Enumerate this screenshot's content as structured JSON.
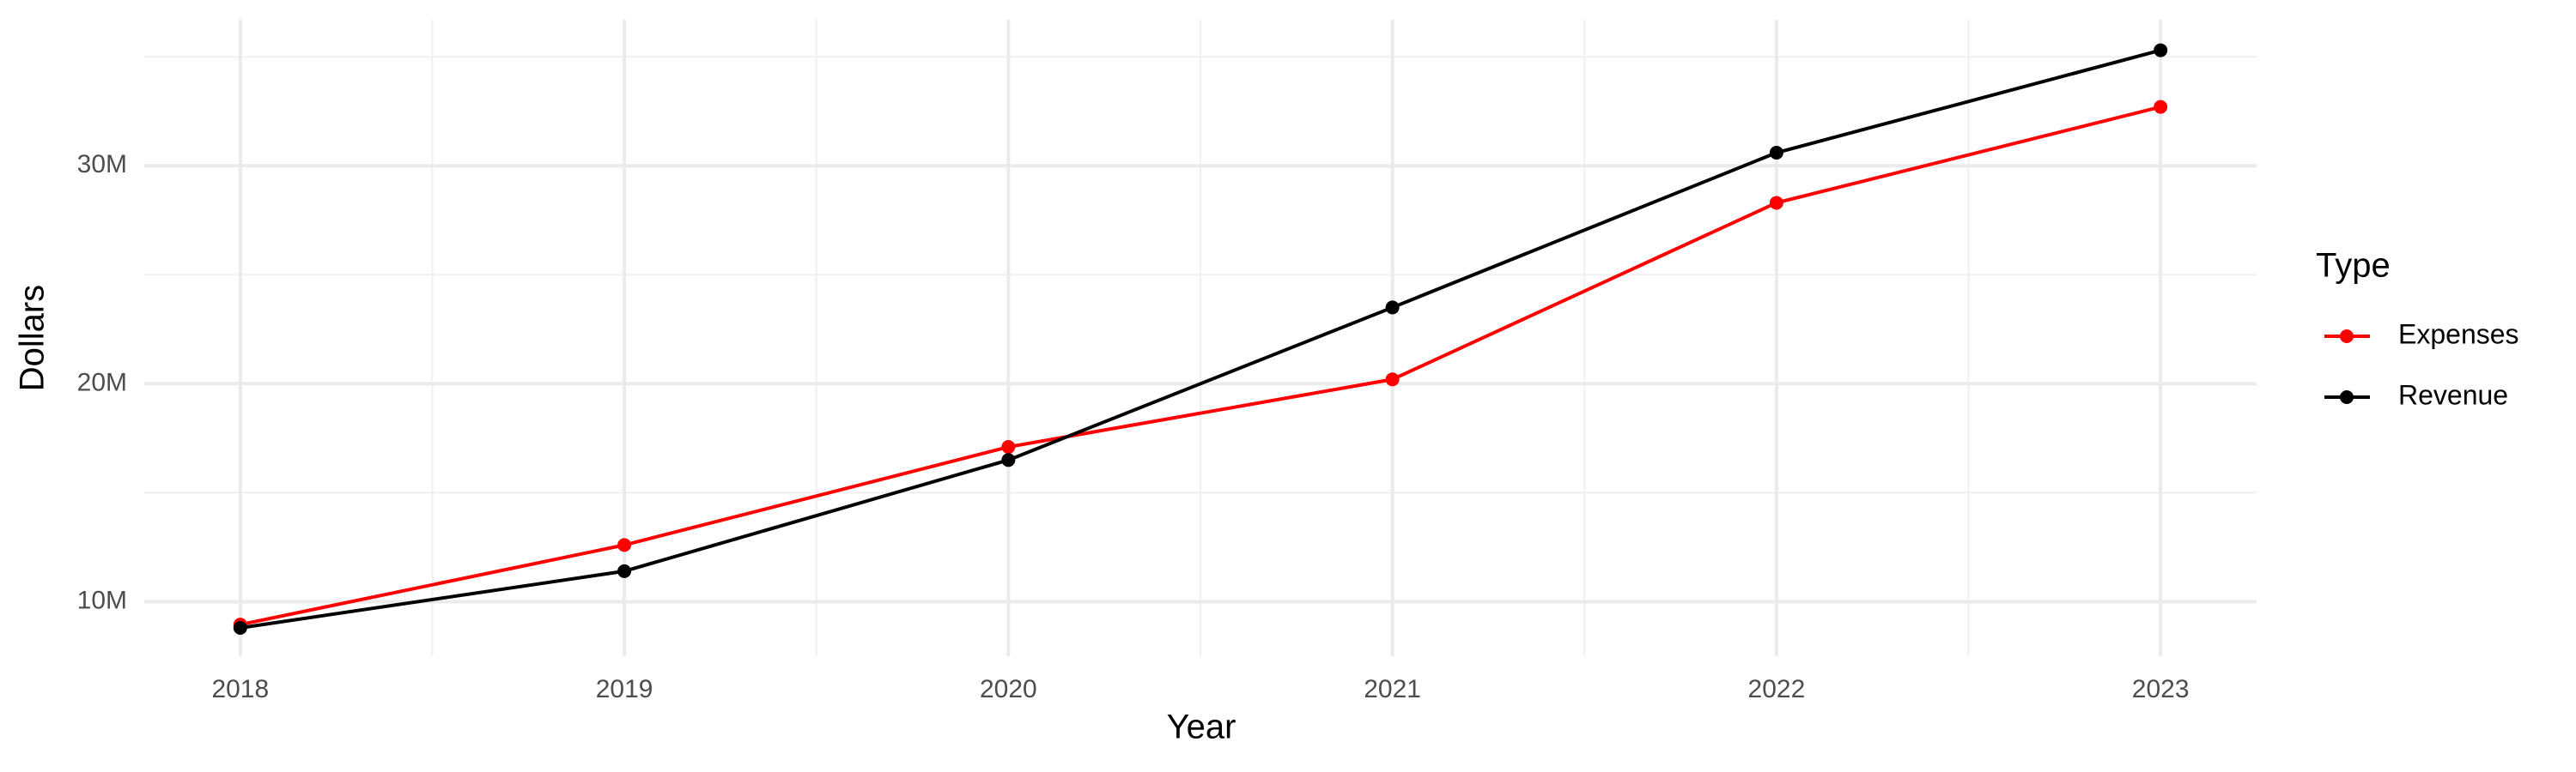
{
  "chart_data": {
    "type": "line",
    "x_label": "Year",
    "y_label": "Dollars",
    "legend_title": "Type",
    "x": [
      2018,
      2019,
      2020,
      2021,
      2022,
      2023
    ],
    "series": [
      {
        "name": "Expenses",
        "color": "#ff0000",
        "values": [
          8950000,
          12600000,
          17100000,
          20200000,
          28300000,
          32700000
        ]
      },
      {
        "name": "Revenue",
        "color": "#000000",
        "values": [
          8800000,
          11400000,
          16500000,
          23500000,
          30600000,
          35300000
        ]
      }
    ],
    "xlim": [
      2017.75,
      2023.25
    ],
    "xticks": [
      2018,
      2019,
      2020,
      2021,
      2022,
      2023
    ],
    "ylim": [
      7500000,
      36700000
    ],
    "yticks": [
      {
        "value": 10000000,
        "label": "10M"
      },
      {
        "value": 20000000,
        "label": "20M"
      },
      {
        "value": 30000000,
        "label": "30M"
      }
    ],
    "grid": true,
    "legend_position": "right"
  }
}
